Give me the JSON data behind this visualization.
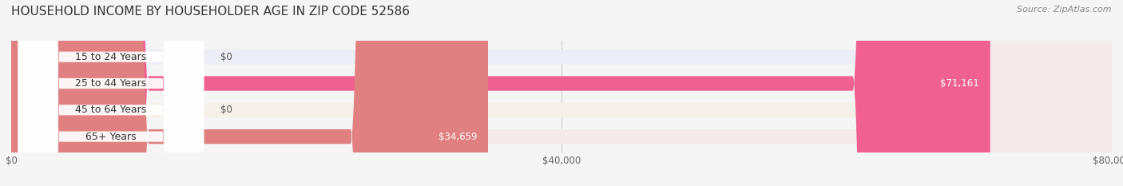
{
  "title": "HOUSEHOLD INCOME BY HOUSEHOLDER AGE IN ZIP CODE 52586",
  "source": "Source: ZipAtlas.com",
  "categories": [
    "15 to 24 Years",
    "25 to 44 Years",
    "45 to 64 Years",
    "65+ Years"
  ],
  "values": [
    0,
    71161,
    0,
    34659
  ],
  "bar_colors": [
    "#9999cc",
    "#f06090",
    "#f0c080",
    "#e08080"
  ],
  "bg_colors": [
    "#ededf5",
    "#f5e8f0",
    "#f5f0e8",
    "#f5eaea"
  ],
  "value_labels": [
    "$0",
    "$71,161",
    "$0",
    "$34,659"
  ],
  "xlim": [
    0,
    80000
  ],
  "xticklabels": [
    "$0",
    "$40,000",
    "$80,000"
  ],
  "bar_height": 0.55,
  "figsize": [
    14.06,
    2.33
  ],
  "dpi": 100,
  "title_fontsize": 11,
  "source_fontsize": 8,
  "label_fontsize": 9,
  "value_fontsize": 8.5,
  "bg_color": "#f5f5f5"
}
